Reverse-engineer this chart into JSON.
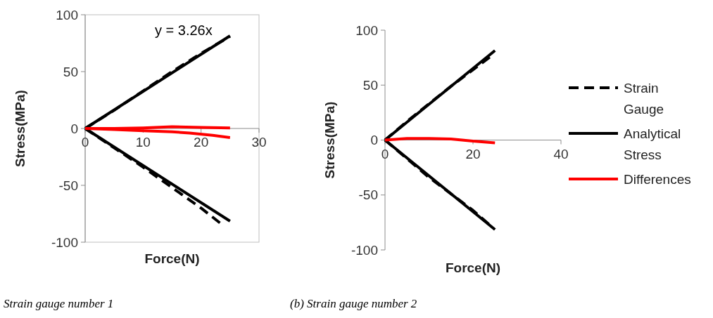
{
  "chart_data": [
    {
      "type": "line",
      "xlabel": "Force(N)",
      "ylabel": "Stress(MPa)",
      "xlim": [
        0,
        30
      ],
      "ylim": [
        -100,
        100
      ],
      "xticks": [
        0,
        10,
        20,
        30
      ],
      "yticks": [
        -100,
        -50,
        0,
        50,
        100
      ],
      "legend": false,
      "annotations": [
        "y = 3.26x",
        "Strain gauge number 1"
      ],
      "series": [
        {
          "x": [
            0,
            5,
            10,
            15,
            20,
            25
          ],
          "values": [
            0,
            16,
            33,
            50,
            66,
            81
          ],
          "color": "#000000",
          "line_style": "dashed"
        },
        {
          "x": [
            0,
            5,
            10,
            15,
            20,
            23.5
          ],
          "values": [
            0,
            -17,
            -34,
            -52,
            -70,
            -84
          ],
          "color": "#000000",
          "line_style": "dashed"
        },
        {
          "x": [
            0,
            25
          ],
          "values": [
            0,
            81.5
          ],
          "color": "#000000",
          "line_style": "solid"
        },
        {
          "x": [
            0,
            25
          ],
          "values": [
            0,
            -81.5
          ],
          "color": "#000000",
          "line_style": "solid"
        },
        {
          "x": [
            0,
            5,
            10,
            15,
            20,
            25
          ],
          "values": [
            0,
            0,
            0.5,
            1.5,
            1,
            0.5
          ],
          "color": "#ff0000",
          "line_style": "solid"
        },
        {
          "x": [
            0,
            5,
            10,
            15,
            18,
            22,
            25
          ],
          "values": [
            0,
            -1,
            -2,
            -3,
            -4,
            -6,
            -8
          ],
          "color": "#ff0000",
          "line_style": "solid"
        }
      ]
    },
    {
      "type": "line",
      "xlabel": "Force(N)",
      "ylabel": "Stress(MPa)",
      "xlim": [
        0,
        40
      ],
      "ylim": [
        -100,
        100
      ],
      "xticks": [
        0,
        20,
        40
      ],
      "yticks": [
        -100,
        -50,
        0,
        50,
        100
      ],
      "legend": "right",
      "annotations": [
        "(b) Strain gauge number 2"
      ],
      "series": [
        {
          "name": "Strain Gauge",
          "x": [
            0,
            5,
            10,
            15,
            20,
            24
          ],
          "values": [
            0,
            17,
            33,
            49,
            64,
            76
          ],
          "color": "#000000",
          "line_style": "dashed"
        },
        {
          "x": [
            0,
            5,
            10,
            15,
            20,
            24
          ],
          "values": [
            0,
            -17,
            -34,
            -49,
            -64,
            -78
          ],
          "color": "#000000",
          "line_style": "dashed"
        },
        {
          "name": "Analytical Stress",
          "x": [
            0,
            25
          ],
          "values": [
            0,
            81.5
          ],
          "color": "#000000",
          "line_style": "solid"
        },
        {
          "x": [
            0,
            25
          ],
          "values": [
            0,
            -81.5
          ],
          "color": "#000000",
          "line_style": "solid"
        },
        {
          "name": "Differences",
          "x": [
            0,
            5,
            10,
            15,
            20,
            25
          ],
          "values": [
            0,
            1.5,
            1.5,
            1,
            -1,
            -2.5
          ],
          "color": "#ff0000",
          "line_style": "solid"
        }
      ]
    }
  ]
}
